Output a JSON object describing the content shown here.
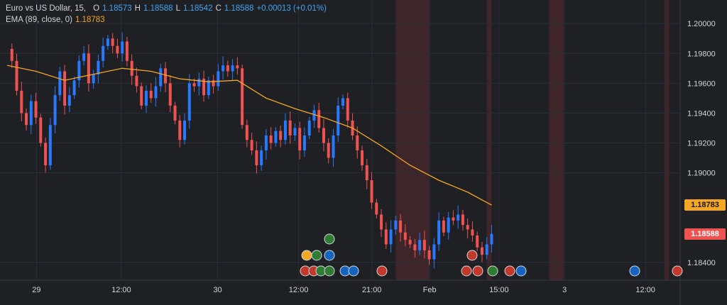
{
  "legend": {
    "symbol": "Euro vs US Dollar, 15,",
    "open_label": "O",
    "open": "1.18573",
    "high_label": "H",
    "high": "1.18588",
    "low_label": "L",
    "low": "1.18542",
    "close_label": "C",
    "close": "1.18588",
    "change": "+0.00013 (+0.01%)",
    "ema_label": "EMA (89, close, 0)",
    "ema_value": "1.18783"
  },
  "colors": {
    "background": "#1e2023",
    "up": "#2979ff",
    "down": "#f05252",
    "ema": "#f5a623",
    "grid": "#2a2e39",
    "session": "#5a2a2f",
    "ema_badge": "#f5a623",
    "price_badge": "#ef5350"
  },
  "chart_data": {
    "type": "candlestick",
    "ylim": [
      1.1828,
      1.2012
    ],
    "y_ticks": [
      "1.20000",
      "1.19800",
      "1.19600",
      "1.19400",
      "1.19200",
      "1.19000",
      "1.18400"
    ],
    "x_ticks": [
      "29",
      "12:00",
      "30",
      "12:00",
      "21:00",
      "Feb",
      "15:00",
      "3",
      "12:00"
    ],
    "price_badges": [
      {
        "label": "1.18783",
        "value": 1.18783,
        "color": "#f5a623"
      },
      {
        "label": "1.18588",
        "value": 1.18588,
        "color": "#ef5350"
      }
    ],
    "close_path": [
      [
        0,
        1.1983
      ],
      [
        1,
        1.1975
      ],
      [
        2,
        1.1955
      ],
      [
        3,
        1.194
      ],
      [
        4,
        1.1932
      ],
      [
        5,
        1.1948
      ],
      [
        6,
        1.1937
      ],
      [
        7,
        1.192
      ],
      [
        8,
        1.1905
      ],
      [
        9,
        1.1932
      ],
      [
        10,
        1.1952
      ],
      [
        11,
        1.1968
      ],
      [
        12,
        1.1945
      ],
      [
        13,
        1.1952
      ],
      [
        14,
        1.1962
      ],
      [
        15,
        1.1975
      ],
      [
        16,
        1.198
      ],
      [
        17,
        1.196
      ],
      [
        18,
        1.1966
      ],
      [
        19,
        1.1975
      ],
      [
        20,
        1.1985
      ],
      [
        21,
        1.199
      ],
      [
        22,
        1.1985
      ],
      [
        23,
        1.198
      ],
      [
        24,
        1.1988
      ],
      [
        25,
        1.1975
      ],
      [
        26,
        1.1965
      ],
      [
        27,
        1.1958
      ],
      [
        28,
        1.1945
      ],
      [
        29,
        1.1955
      ],
      [
        30,
        1.195
      ],
      [
        31,
        1.1958
      ],
      [
        32,
        1.197
      ],
      [
        33,
        1.196
      ],
      [
        34,
        1.1945
      ],
      [
        35,
        1.1935
      ],
      [
        36,
        1.1922
      ],
      [
        37,
        1.1935
      ],
      [
        38,
        1.196
      ],
      [
        39,
        1.1958
      ],
      [
        40,
        1.1963
      ],
      [
        41,
        1.1952
      ],
      [
        42,
        1.1962
      ],
      [
        43,
        1.1958
      ],
      [
        44,
        1.1968
      ],
      [
        45,
        1.1972
      ],
      [
        46,
        1.1968
      ],
      [
        47,
        1.1972
      ],
      [
        48,
        1.197
      ],
      [
        49,
        1.1932
      ],
      [
        50,
        1.1922
      ],
      [
        51,
        1.1915
      ],
      [
        52,
        1.1905
      ],
      [
        53,
        1.1915
      ],
      [
        54,
        1.1925
      ],
      [
        55,
        1.192
      ],
      [
        56,
        1.1928
      ],
      [
        57,
        1.1922
      ],
      [
        58,
        1.1935
      ],
      [
        59,
        1.1925
      ],
      [
        60,
        1.193
      ],
      [
        61,
        1.1915
      ],
      [
        62,
        1.1925
      ],
      [
        63,
        1.1935
      ],
      [
        64,
        1.1942
      ],
      [
        65,
        1.193
      ],
      [
        66,
        1.192
      ],
      [
        67,
        1.191
      ],
      [
        68,
        1.1925
      ],
      [
        69,
        1.1945
      ],
      [
        70,
        1.195
      ],
      [
        71,
        1.1935
      ],
      [
        72,
        1.1925
      ],
      [
        73,
        1.1915
      ],
      [
        74,
        1.1905
      ],
      [
        75,
        1.1895
      ],
      [
        76,
        1.188
      ],
      [
        77,
        1.1872
      ],
      [
        78,
        1.1862
      ],
      [
        79,
        1.1852
      ],
      [
        80,
        1.1862
      ],
      [
        81,
        1.1868
      ],
      [
        82,
        1.186
      ],
      [
        83,
        1.1855
      ],
      [
        84,
        1.1852
      ],
      [
        85,
        1.1848
      ],
      [
        86,
        1.1855
      ],
      [
        87,
        1.1848
      ],
      [
        88,
        1.1842
      ],
      [
        89,
        1.1852
      ],
      [
        90,
        1.1868
      ],
      [
        91,
        1.186
      ],
      [
        92,
        1.187
      ],
      [
        93,
        1.1868
      ],
      [
        94,
        1.1872
      ],
      [
        95,
        1.1865
      ],
      [
        96,
        1.1862
      ],
      [
        97,
        1.1858
      ],
      [
        98,
        1.185
      ],
      [
        99,
        1.1845
      ],
      [
        100,
        1.1852
      ],
      [
        101,
        1.1859
      ]
    ],
    "ema_path": [
      [
        0,
        1.1972
      ],
      [
        6,
        1.1968
      ],
      [
        12,
        1.1962
      ],
      [
        18,
        1.1966
      ],
      [
        24,
        1.197
      ],
      [
        30,
        1.1968
      ],
      [
        36,
        1.1963
      ],
      [
        42,
        1.1961
      ],
      [
        48,
        1.1962
      ],
      [
        54,
        1.195
      ],
      [
        60,
        1.1943
      ],
      [
        66,
        1.1937
      ],
      [
        72,
        1.193
      ],
      [
        78,
        1.1918
      ],
      [
        84,
        1.1905
      ],
      [
        90,
        1.1895
      ],
      [
        96,
        1.1887
      ],
      [
        101,
        1.18783
      ]
    ],
    "session_bands": [
      [
        81,
        88
      ],
      [
        100,
        101
      ],
      [
        113,
        116
      ],
      [
        137,
        138
      ]
    ]
  }
}
